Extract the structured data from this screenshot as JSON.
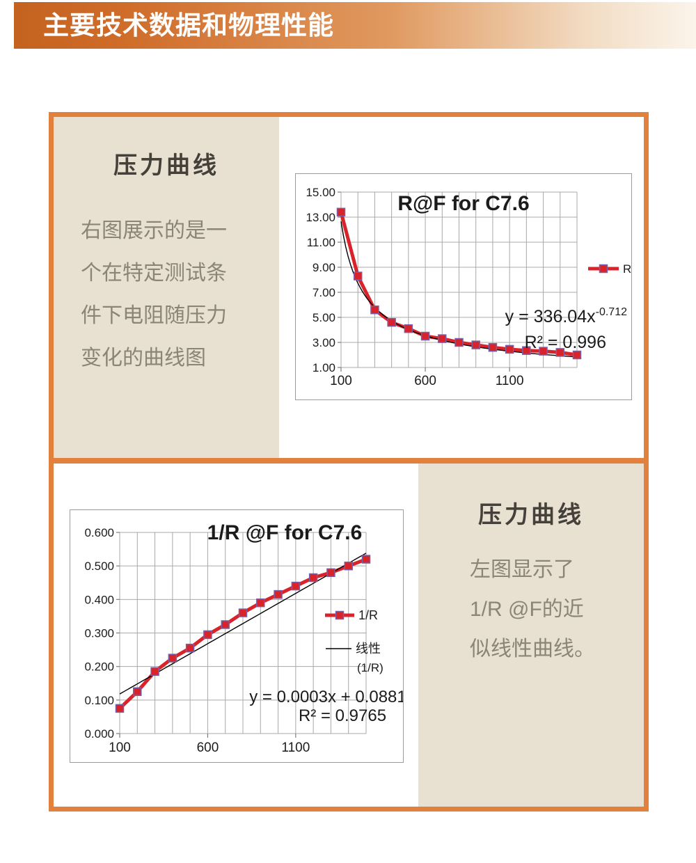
{
  "header": {
    "title": "主要技术数据和物理性能"
  },
  "colors": {
    "accent_orange": "#e2803e",
    "banner_orange": "#cf6c2a",
    "panel_beige": "#e8e1d2",
    "series_red": "#d9232a",
    "marker_outline": "#7b5fa5",
    "trendline_black": "#000000",
    "grid_gray": "#a8a8a8",
    "chart_text": "#1b1b1b",
    "title_text": "#44403a",
    "body_text": "#8b8578"
  },
  "top_section": {
    "panel_title": "压力曲线",
    "paragraph_lines": [
      "右图展示的是一",
      "个在特定测试条",
      "件下电阻随压力",
      "变化的曲线图"
    ]
  },
  "bottom_section": {
    "panel_title": "压力曲线",
    "paragraph_lines": [
      "左图显示了",
      "1/R @F的近",
      "似线性曲线。"
    ]
  },
  "chart_data": [
    {
      "type": "line",
      "title": "R@F for C7.6",
      "x": [
        100,
        200,
        300,
        400,
        500,
        600,
        700,
        800,
        900,
        1000,
        1100,
        1200,
        1300,
        1400,
        1500
      ],
      "series": [
        {
          "name": "R",
          "values": [
            13.4,
            8.3,
            5.6,
            4.6,
            4.1,
            3.5,
            3.3,
            3.0,
            2.8,
            2.6,
            2.45,
            2.35,
            2.3,
            2.2,
            2.0
          ]
        }
      ],
      "xlim": [
        100,
        1500
      ],
      "ylim": [
        1,
        15
      ],
      "x_grid_step": 100,
      "y_grid_step": 2,
      "x_ticks": [
        {
          "value": 100,
          "label": "100"
        },
        {
          "value": 600,
          "label": "600"
        },
        {
          "value": 1100,
          "label": "1100"
        }
      ],
      "y_ticks": [
        {
          "value": 15,
          "label": "15.00"
        },
        {
          "value": 13,
          "label": "13.00"
        },
        {
          "value": 11,
          "label": "11.00"
        },
        {
          "value": 9,
          "label": "9.00"
        },
        {
          "value": 7,
          "label": "7.00"
        },
        {
          "value": 5,
          "label": "5.00"
        },
        {
          "value": 3,
          "label": "3.00"
        },
        {
          "value": 1,
          "label": "1.00"
        }
      ],
      "grid": true,
      "legend": [
        {
          "label": "R",
          "style": "marker"
        }
      ],
      "legend_position": "right-inside",
      "trendline": {
        "fit": "power",
        "a": 336.04,
        "b": -0.712
      },
      "equation": {
        "text": "y = 336.04x",
        "exponent": "-0.712"
      },
      "r_squared": "R² = 0.996"
    },
    {
      "type": "line",
      "title": "1/R @F for C7.6",
      "x": [
        100,
        200,
        300,
        400,
        500,
        600,
        700,
        800,
        900,
        1000,
        1100,
        1200,
        1300,
        1400,
        1500
      ],
      "series": [
        {
          "name": "1/R",
          "values": [
            0.075,
            0.125,
            0.185,
            0.225,
            0.255,
            0.295,
            0.325,
            0.36,
            0.39,
            0.415,
            0.44,
            0.465,
            0.48,
            0.5,
            0.52
          ]
        }
      ],
      "xlim": [
        100,
        1500
      ],
      "ylim": [
        0,
        0.6
      ],
      "x_grid_step": 100,
      "y_grid_step": 0.1,
      "x_ticks": [
        {
          "value": 100,
          "label": "100"
        },
        {
          "value": 600,
          "label": "600"
        },
        {
          "value": 1100,
          "label": "1100"
        }
      ],
      "y_ticks": [
        {
          "value": 0.6,
          "label": "0.600"
        },
        {
          "value": 0.5,
          "label": "0.500"
        },
        {
          "value": 0.4,
          "label": "0.400"
        },
        {
          "value": 0.3,
          "label": "0.300"
        },
        {
          "value": 0.2,
          "label": "0.200"
        },
        {
          "value": 0.1,
          "label": "0.100"
        },
        {
          "value": 0,
          "label": "0.000"
        }
      ],
      "grid": true,
      "legend": [
        {
          "label": "1/R",
          "style": "marker"
        },
        {
          "label": "线性",
          "sublabel": "(1/R)",
          "style": "plain-line"
        }
      ],
      "legend_position": "right-inside",
      "trendline": {
        "fit": "linear",
        "slope": 0.0003,
        "intercept": 0.0881
      },
      "equation": {
        "text": "y = 0.0003x + 0.0881"
      },
      "r_squared": "R² = 0.9765"
    }
  ]
}
